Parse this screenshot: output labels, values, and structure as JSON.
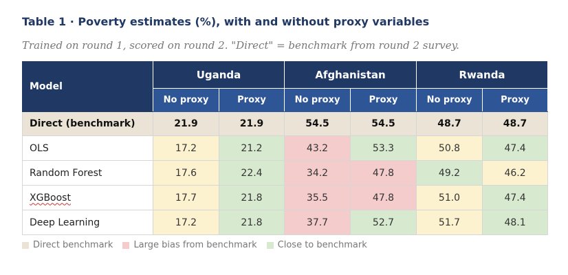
{
  "title": "Table 1 · Poverty estimates (%), with and without proxy variables",
  "subtitle": "Trained on round 1, scored on round 2. \"Direct\" = benchmark from round 2 survey.",
  "table": {
    "model_header": "Model",
    "countries": [
      "Uganda",
      "Afghanistan",
      "Rwanda"
    ],
    "sub_headers": [
      "No proxy",
      "Proxy"
    ],
    "benchmark_row": {
      "label": "Direct (benchmark)",
      "values": [
        "21.9",
        "21.9",
        "54.5",
        "54.5",
        "48.7",
        "48.7"
      ]
    },
    "rows": [
      {
        "label": "OLS",
        "values": [
          "17.2",
          "21.2",
          "43.2",
          "53.3",
          "50.8",
          "47.4"
        ],
        "status": [
          "yellow",
          "green",
          "red",
          "green",
          "yellow",
          "green"
        ]
      },
      {
        "label": "Random Forest",
        "values": [
          "17.6",
          "22.4",
          "34.2",
          "47.8",
          "49.2",
          "46.2"
        ],
        "status": [
          "yellow",
          "green",
          "red",
          "red",
          "green",
          "yellow"
        ]
      },
      {
        "label": "XGBoost",
        "values": [
          "17.7",
          "21.8",
          "35.5",
          "47.8",
          "51.0",
          "47.4"
        ],
        "status": [
          "yellow",
          "green",
          "red",
          "red",
          "yellow",
          "green"
        ]
      },
      {
        "label": "Deep Learning",
        "values": [
          "17.2",
          "21.8",
          "37.7",
          "52.7",
          "51.7",
          "48.1"
        ],
        "status": [
          "yellow",
          "green",
          "red",
          "green",
          "yellow",
          "green"
        ]
      }
    ]
  },
  "legend": [
    {
      "label": "Direct benchmark",
      "color": "#ebe4d6"
    },
    {
      "label": "Large bias from benchmark",
      "color": "#f4cccc"
    },
    {
      "label": "Close to benchmark",
      "color": "#d7ead0"
    }
  ],
  "colors": {
    "header": "#1f3864",
    "subheader": "#2e5596",
    "benchmark": "#ebe4d6",
    "yellow": "#fdf2cf",
    "red": "#f4cccc",
    "green": "#d7ead0"
  }
}
